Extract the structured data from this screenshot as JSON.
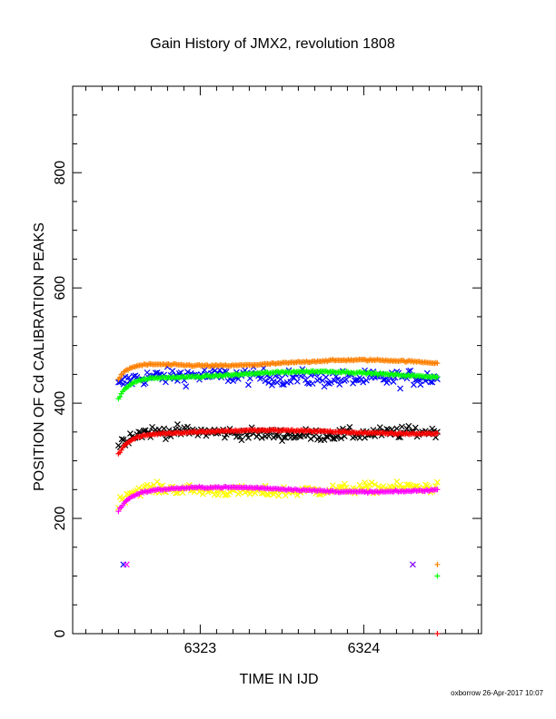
{
  "chart_data": {
    "type": "scatter",
    "title": "Gain History of JMX2, revolution 1808",
    "xlabel": "TIME IN IJD",
    "ylabel": "POSITION OF Cd CALIBRATION PEAKS",
    "xlim": [
      6322.22,
      6324.72
    ],
    "ylim": [
      0,
      950
    ],
    "xticks": [
      6323,
      6324
    ],
    "yticks": [
      0,
      200,
      400,
      600,
      800
    ],
    "grid": false,
    "legend": "none",
    "series": [
      {
        "color": "#0000ff",
        "marker": "x",
        "t_start": 6322.5,
        "t_end": 6324.45,
        "base": 445,
        "ramp": 15,
        "tau": 0.06,
        "wave_amp": 3,
        "noise": 14,
        "n": 190
      },
      {
        "color": "#000000",
        "marker": "x",
        "t_start": 6322.5,
        "t_end": 6324.45,
        "base": 348,
        "ramp": 25,
        "tau": 0.06,
        "wave_amp": 3,
        "noise": 10,
        "n": 190
      },
      {
        "color": "#ffff00",
        "marker": "x",
        "t_start": 6322.5,
        "t_end": 6324.45,
        "base": 250,
        "ramp": 30,
        "tau": 0.06,
        "wave_amp": 4,
        "noise": 9,
        "n": 190
      },
      {
        "color": "#ff8000",
        "marker": "+",
        "t_start": 6322.5,
        "t_end": 6324.45,
        "base": 470,
        "ramp": 30,
        "tau": 0.07,
        "wave_amp": 5,
        "noise": 1.5,
        "n": 230
      },
      {
        "color": "#00ff00",
        "marker": "+",
        "t_start": 6322.5,
        "t_end": 6324.45,
        "base": 450,
        "ramp": 40,
        "tau": 0.07,
        "wave_amp": 5,
        "noise": 1.5,
        "n": 230
      },
      {
        "color": "#ff0000",
        "marker": "+",
        "t_start": 6322.5,
        "t_end": 6324.45,
        "base": 350,
        "ramp": 35,
        "tau": 0.07,
        "wave_amp": 3,
        "noise": 1.5,
        "n": 230
      },
      {
        "color": "#ff00ff",
        "marker": "+",
        "t_start": 6322.5,
        "t_end": 6324.45,
        "base": 250,
        "ramp": 35,
        "tau": 0.07,
        "wave_amp": 4,
        "noise": 1.5,
        "n": 230
      }
    ],
    "outliers": [
      {
        "x": 6322.53,
        "y": 120,
        "color": "#0000ff",
        "marker": "x"
      },
      {
        "x": 6322.55,
        "y": 120,
        "color": "#ff00ff",
        "marker": "x"
      },
      {
        "x": 6324.3,
        "y": 120,
        "color": "#8000ff",
        "marker": "x"
      },
      {
        "x": 6324.45,
        "y": 120,
        "color": "#ff8000",
        "marker": "+"
      },
      {
        "x": 6324.45,
        "y": 100,
        "color": "#00ff00",
        "marker": "+"
      },
      {
        "x": 6324.45,
        "y": 0,
        "color": "#ff0000",
        "marker": "+"
      }
    ]
  },
  "footer": "oxborrow 26-Apr-2017 10:07"
}
